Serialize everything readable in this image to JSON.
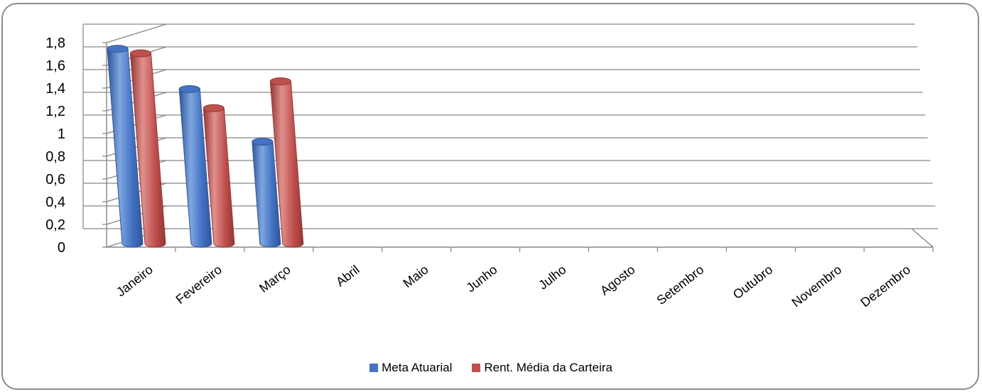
{
  "chart_data": {
    "type": "bar",
    "style": "3d-cylinder",
    "categories": [
      "Janeiro",
      "Fevereiro",
      "Março",
      "Abril",
      "Maio",
      "Junho",
      "Julho",
      "Agosto",
      "Setembro",
      "Outubro",
      "Novembro",
      "Dezembro"
    ],
    "series": [
      {
        "name": "Meta Atuarial",
        "color": "#4472c4",
        "values": [
          1.74,
          1.38,
          0.91,
          null,
          null,
          null,
          null,
          null,
          null,
          null,
          null,
          null
        ]
      },
      {
        "name": "Rent. Média da Carteira",
        "color": "#c0504d",
        "values": [
          1.7,
          1.21,
          1.45,
          null,
          null,
          null,
          null,
          null,
          null,
          null,
          null,
          null
        ]
      }
    ],
    "y_ticks": [
      "0",
      "0,2",
      "0,4",
      "0,6",
      "0,8",
      "1",
      "1,2",
      "1,4",
      "1,6",
      "1,8"
    ],
    "ylim": [
      0,
      1.8
    ],
    "title": "",
    "xlabel": "",
    "ylabel": "",
    "grid": true,
    "legend_position": "bottom"
  }
}
